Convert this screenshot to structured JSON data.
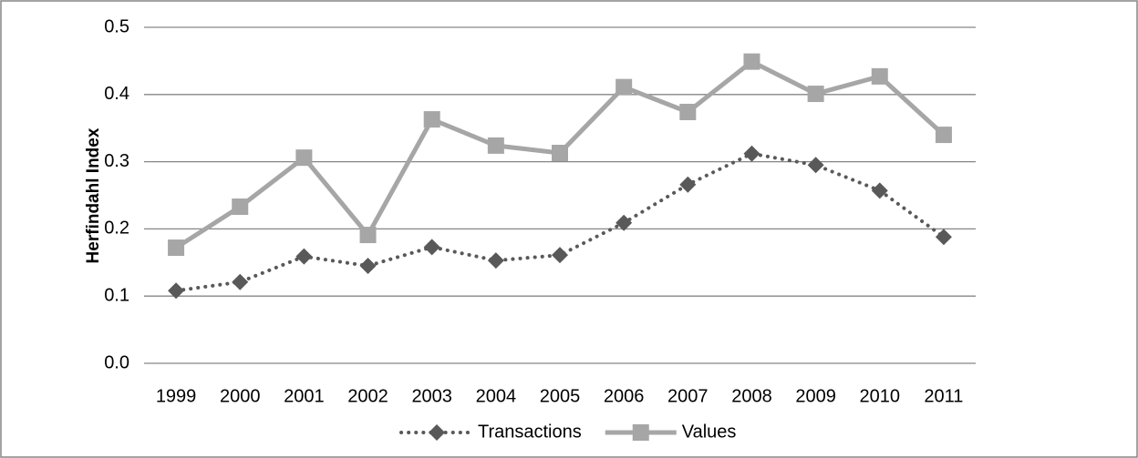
{
  "chart_data": {
    "type": "line",
    "y_label": "Herfindahl  Index",
    "categories": [
      "1999",
      "2000",
      "2001",
      "2002",
      "2003",
      "2004",
      "2005",
      "2006",
      "2007",
      "2008",
      "2009",
      "2010",
      "2011"
    ],
    "series": [
      {
        "name": "Transactions",
        "color": "#595959",
        "dash": "dotted",
        "marker": "diamond",
        "values": [
          0.108,
          0.121,
          0.159,
          0.145,
          0.173,
          0.153,
          0.161,
          0.209,
          0.266,
          0.312,
          0.295,
          0.257,
          0.188
        ]
      },
      {
        "name": "Values",
        "color": "#a6a6a6",
        "dash": "solid",
        "marker": "square",
        "values": [
          0.172,
          0.233,
          0.306,
          0.191,
          0.363,
          0.324,
          0.313,
          0.411,
          0.374,
          0.449,
          0.401,
          0.427,
          0.34
        ]
      }
    ],
    "ylim": [
      0,
      0.5
    ],
    "yticks": [
      {
        "value": 0,
        "label": "0.0"
      },
      0.1,
      0.2,
      0.3,
      0.4,
      0.5
    ],
    "grid": true,
    "legend": "bottom"
  }
}
